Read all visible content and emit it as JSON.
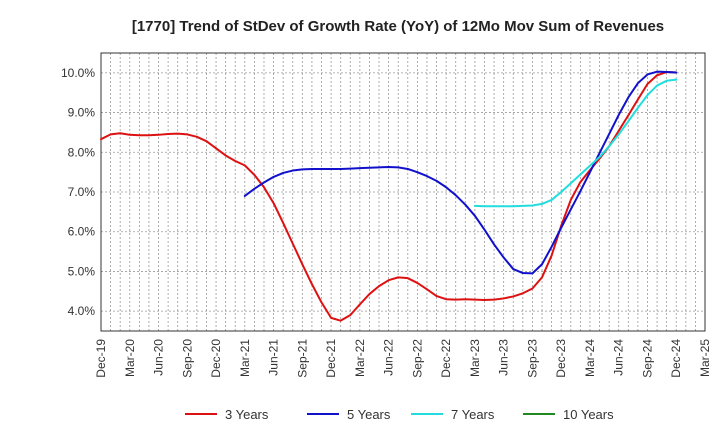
{
  "chart_data": {
    "type": "line",
    "title": "[1770]  Trend of StDev of Growth Rate (YoY) of 12Mo Mov Sum of Revenues",
    "xlabel": "",
    "ylabel": "",
    "ylim": [
      3.5,
      10.5
    ],
    "y_ticks": [
      4.0,
      5.0,
      6.0,
      7.0,
      8.0,
      9.0,
      10.0
    ],
    "y_tick_labels": [
      "4.0%",
      "5.0%",
      "6.0%",
      "7.0%",
      "8.0%",
      "9.0%",
      "10.0%"
    ],
    "x_tick_labels": [
      "Dec-19",
      "Mar-20",
      "Jun-20",
      "Sep-20",
      "Dec-20",
      "Mar-21",
      "Jun-21",
      "Sep-21",
      "Dec-21",
      "Mar-22",
      "Jun-22",
      "Sep-22",
      "Dec-22",
      "Mar-23",
      "Jun-23",
      "Sep-23",
      "Dec-23",
      "Mar-24",
      "Jun-24",
      "Sep-24",
      "Dec-24",
      "Mar-25"
    ],
    "x_unit": "months since Dec-19",
    "x_range": [
      0,
      63
    ],
    "grid": true,
    "legend_position": "bottom",
    "series": [
      {
        "name": "3 Years",
        "color": "#dd1111",
        "x": [
          0,
          1,
          2,
          3,
          4,
          5,
          6,
          7,
          8,
          9,
          10,
          11,
          12,
          13,
          14,
          15,
          16,
          17,
          18,
          19,
          20,
          21,
          22,
          23,
          24,
          25,
          26,
          27,
          28,
          29,
          30,
          31,
          32,
          33,
          34,
          35,
          36,
          37,
          38,
          39,
          40,
          41,
          42,
          43,
          44,
          45,
          46,
          47,
          48,
          49,
          50,
          51,
          52,
          53,
          54,
          55,
          56,
          57,
          58,
          59,
          60
        ],
        "values": [
          8.33,
          8.45,
          8.48,
          8.44,
          8.43,
          8.43,
          8.44,
          8.46,
          8.47,
          8.45,
          8.39,
          8.28,
          8.1,
          7.92,
          7.78,
          7.67,
          7.43,
          7.12,
          6.72,
          6.22,
          5.7,
          5.18,
          4.68,
          4.22,
          3.83,
          3.76,
          3.9,
          4.17,
          4.43,
          4.63,
          4.78,
          4.85,
          4.83,
          4.71,
          4.55,
          4.38,
          4.3,
          4.29,
          4.3,
          4.29,
          4.28,
          4.29,
          4.32,
          4.37,
          4.45,
          4.57,
          4.85,
          5.4,
          6.15,
          6.8,
          7.25,
          7.55,
          7.84,
          8.15,
          8.54,
          8.93,
          9.33,
          9.72,
          9.94,
          10.02,
          10.01
        ]
      },
      {
        "name": "5 Years",
        "color": "#1111cc",
        "x": [
          15,
          16,
          17,
          18,
          19,
          20,
          21,
          22,
          23,
          24,
          25,
          26,
          27,
          28,
          29,
          30,
          31,
          32,
          33,
          34,
          35,
          36,
          37,
          38,
          39,
          40,
          41,
          42,
          43,
          44,
          45,
          46,
          47,
          48,
          49,
          50,
          51,
          52,
          53,
          54,
          55,
          56,
          57,
          58,
          59,
          60
        ],
        "values": [
          6.9,
          7.08,
          7.24,
          7.38,
          7.48,
          7.54,
          7.57,
          7.58,
          7.58,
          7.58,
          7.58,
          7.59,
          7.6,
          7.61,
          7.62,
          7.63,
          7.62,
          7.58,
          7.5,
          7.4,
          7.28,
          7.12,
          6.92,
          6.68,
          6.4,
          6.05,
          5.68,
          5.35,
          5.06,
          4.96,
          4.95,
          5.18,
          5.62,
          6.1,
          6.56,
          7.02,
          7.5,
          7.98,
          8.46,
          8.94,
          9.38,
          9.74,
          9.96,
          10.03,
          10.02,
          10.01
        ]
      },
      {
        "name": "7 Years",
        "color": "#22dddd",
        "x": [
          39,
          40,
          41,
          42,
          43,
          44,
          45,
          46,
          47,
          48,
          49,
          50,
          51,
          52,
          53,
          54,
          55,
          56,
          57,
          58,
          59,
          60
        ],
        "values": [
          6.65,
          6.64,
          6.64,
          6.64,
          6.64,
          6.65,
          6.66,
          6.7,
          6.8,
          7.0,
          7.22,
          7.44,
          7.66,
          7.88,
          8.15,
          8.45,
          8.78,
          9.12,
          9.44,
          9.68,
          9.8,
          9.83
        ]
      },
      {
        "name": "10 Years",
        "color": "#228822",
        "x": [],
        "values": []
      }
    ]
  }
}
